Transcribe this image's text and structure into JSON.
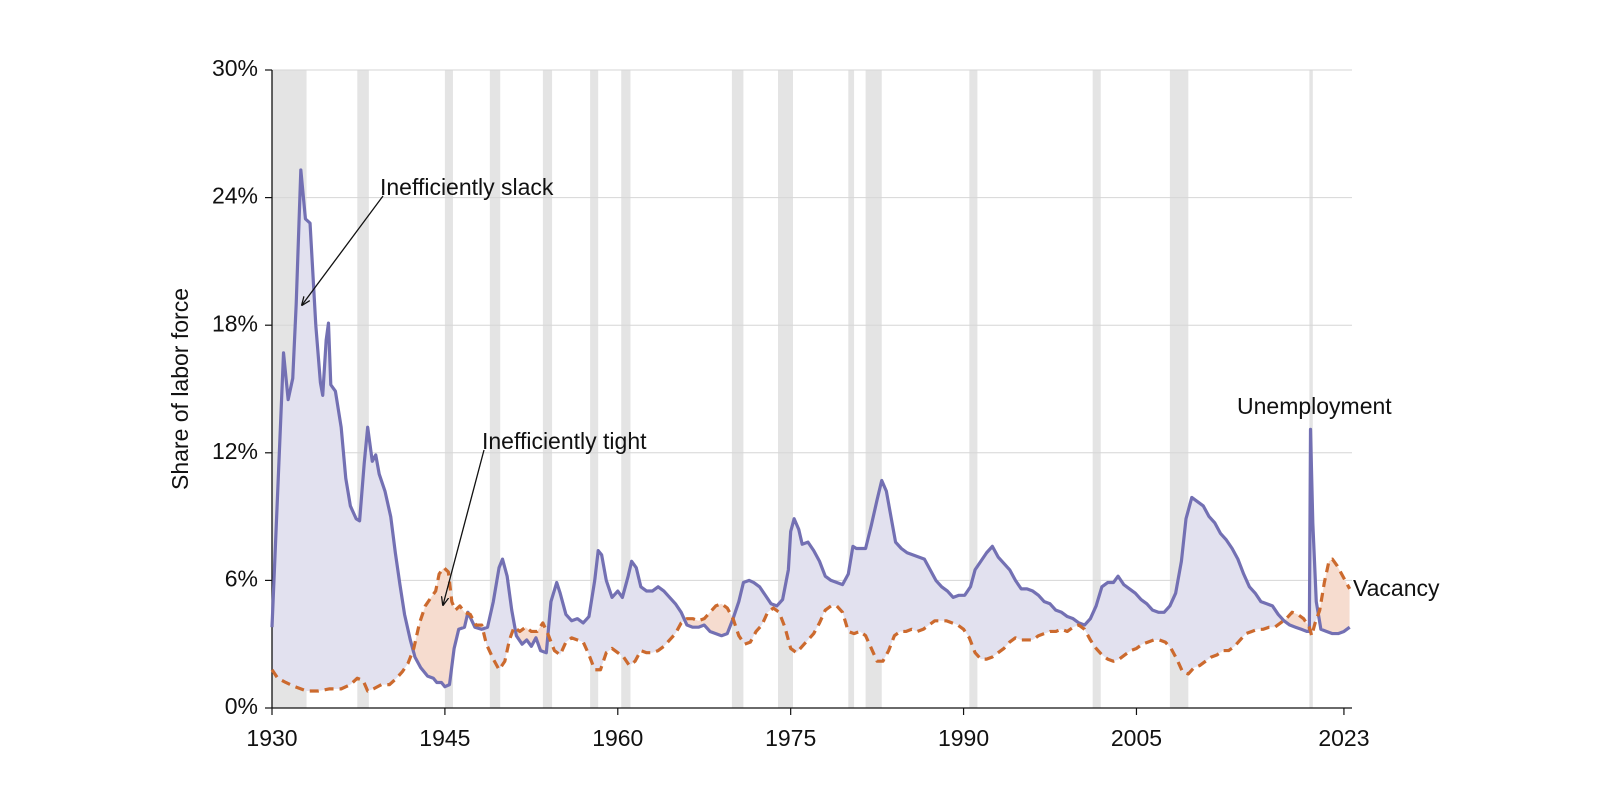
{
  "chart_data": {
    "type": "line",
    "y_label": "Share of labor force",
    "xlim": [
      1930,
      2023.7
    ],
    "xticks": [
      1930,
      1945,
      1960,
      1975,
      1990,
      2005,
      2023
    ],
    "ylim": [
      0,
      30
    ],
    "yticks": [
      {
        "value": 0,
        "label": "0%"
      },
      {
        "value": 6,
        "label": "6%"
      },
      {
        "value": 12,
        "label": "12%"
      },
      {
        "value": 18,
        "label": "18%"
      },
      {
        "value": 24,
        "label": "24%"
      },
      {
        "value": 30,
        "label": "30%"
      }
    ],
    "grid": true,
    "recession_color": "#e4e4e4",
    "recessions": [
      [
        1930,
        1933.0
      ],
      [
        1937.4,
        1938.4
      ],
      [
        1945.0,
        1945.7
      ],
      [
        1948.9,
        1949.8
      ],
      [
        1953.5,
        1954.3
      ],
      [
        1957.6,
        1958.3
      ],
      [
        1960.3,
        1961.1
      ],
      [
        1969.9,
        1970.9
      ],
      [
        1973.9,
        1975.2
      ],
      [
        1980.0,
        1980.5
      ],
      [
        1981.5,
        1982.9
      ],
      [
        1990.5,
        1991.2
      ],
      [
        2001.2,
        2001.9
      ],
      [
        2007.9,
        2009.5
      ],
      [
        2020.0,
        2020.3
      ]
    ],
    "annotations": [
      "Inefficiently slack",
      "Inefficiently tight"
    ],
    "series": [
      {
        "name": "Unemployment",
        "color": "#7370b3",
        "fill": "#e2e1ef",
        "dashed": false,
        "x": [
          1930.0,
          1931.0,
          1931.4,
          1931.8,
          1932.1,
          1932.5,
          1932.9,
          1933.3,
          1933.8,
          1934.2,
          1934.4,
          1934.7,
          1934.9,
          1935.1,
          1935.5,
          1936.0,
          1936.4,
          1936.8,
          1937.3,
          1937.6,
          1938.0,
          1938.3,
          1938.7,
          1939.0,
          1939.3,
          1939.8,
          1940.3,
          1940.7,
          1941.1,
          1941.5,
          1942.0,
          1942.4,
          1942.9,
          1943.5,
          1944.0,
          1944.3,
          1944.7,
          1945.0,
          1945.4,
          1945.8,
          1946.2,
          1946.7,
          1947.0,
          1947.6,
          1948.2,
          1948.7,
          1949.2,
          1949.7,
          1950.0,
          1950.4,
          1950.8,
          1951.2,
          1951.7,
          1952.1,
          1952.5,
          1952.9,
          1953.3,
          1953.8,
          1954.2,
          1954.7,
          1955.0,
          1955.5,
          1956.0,
          1956.5,
          1957.0,
          1957.5,
          1958.0,
          1958.3,
          1958.6,
          1959.0,
          1959.5,
          1960.0,
          1960.4,
          1960.9,
          1961.2,
          1961.6,
          1962.0,
          1962.5,
          1963.0,
          1963.5,
          1964.0,
          1964.5,
          1965.0,
          1965.5,
          1966.0,
          1966.5,
          1967.0,
          1967.5,
          1968.0,
          1968.5,
          1969.0,
          1969.5,
          1970.0,
          1970.5,
          1970.9,
          1971.4,
          1971.8,
          1972.3,
          1972.8,
          1973.3,
          1973.8,
          1974.3,
          1974.8,
          1975.0,
          1975.3,
          1975.7,
          1976.0,
          1976.5,
          1977.0,
          1977.5,
          1978.0,
          1978.5,
          1979.0,
          1979.5,
          1980.0,
          1980.4,
          1980.7,
          1981.0,
          1981.5,
          1982.0,
          1982.5,
          1982.9,
          1983.3,
          1983.7,
          1984.1,
          1984.6,
          1985.1,
          1985.6,
          1986.1,
          1986.6,
          1987.1,
          1987.6,
          1988.1,
          1988.6,
          1989.1,
          1989.6,
          1990.1,
          1990.6,
          1991.0,
          1991.5,
          1992.0,
          1992.5,
          1993.0,
          1993.5,
          1994.0,
          1994.5,
          1995.0,
          1995.5,
          1996.0,
          1996.5,
          1997.0,
          1997.5,
          1998.0,
          1998.5,
          1999.0,
          1999.5,
          2000.0,
          2000.5,
          2001.0,
          2001.5,
          2002.0,
          2002.5,
          2003.0,
          2003.4,
          2003.9,
          2004.4,
          2004.9,
          2005.4,
          2005.9,
          2006.4,
          2006.9,
          2007.4,
          2007.9,
          2008.4,
          2008.9,
          2009.3,
          2009.8,
          2010.3,
          2010.8,
          2011.3,
          2011.8,
          2012.3,
          2012.8,
          2013.3,
          2013.8,
          2014.3,
          2014.8,
          2015.3,
          2015.8,
          2016.3,
          2016.8,
          2017.3,
          2017.8,
          2018.3,
          2018.8,
          2019.3,
          2019.8,
          2020.0,
          2020.1,
          2020.3,
          2020.6,
          2021.0,
          2021.5,
          2022.0,
          2022.5,
          2023.0,
          2023.5
        ],
        "values": [
          3.8,
          16.7,
          14.5,
          15.5,
          19.0,
          25.3,
          23.0,
          22.8,
          18.0,
          15.3,
          14.7,
          17.3,
          18.1,
          15.2,
          14.9,
          13.2,
          10.8,
          9.5,
          8.9,
          8.8,
          11.5,
          13.2,
          11.6,
          11.9,
          11.0,
          10.2,
          9.0,
          7.3,
          5.8,
          4.4,
          3.2,
          2.4,
          1.9,
          1.5,
          1.4,
          1.2,
          1.2,
          1.0,
          1.1,
          2.8,
          3.7,
          3.8,
          4.5,
          3.8,
          3.7,
          3.8,
          5.0,
          6.6,
          7.0,
          6.2,
          4.6,
          3.4,
          3.0,
          3.2,
          2.9,
          3.3,
          2.7,
          2.6,
          5.0,
          5.9,
          5.4,
          4.4,
          4.1,
          4.2,
          4.0,
          4.3,
          6.0,
          7.4,
          7.2,
          6.0,
          5.2,
          5.5,
          5.2,
          6.2,
          6.9,
          6.6,
          5.7,
          5.5,
          5.5,
          5.7,
          5.5,
          5.2,
          4.9,
          4.5,
          3.9,
          3.8,
          3.8,
          3.9,
          3.6,
          3.5,
          3.4,
          3.5,
          4.2,
          5.0,
          5.9,
          6.0,
          5.9,
          5.7,
          5.3,
          4.9,
          4.8,
          5.1,
          6.5,
          8.3,
          8.9,
          8.4,
          7.7,
          7.8,
          7.4,
          6.9,
          6.2,
          6.0,
          5.9,
          5.8,
          6.3,
          7.6,
          7.5,
          7.5,
          7.5,
          8.6,
          9.8,
          10.7,
          10.2,
          9.0,
          7.8,
          7.5,
          7.3,
          7.2,
          7.1,
          7.0,
          6.5,
          6.0,
          5.7,
          5.5,
          5.2,
          5.3,
          5.3,
          5.7,
          6.5,
          6.9,
          7.3,
          7.6,
          7.1,
          6.8,
          6.5,
          6.0,
          5.6,
          5.6,
          5.5,
          5.3,
          5.0,
          4.9,
          4.6,
          4.5,
          4.3,
          4.2,
          4.0,
          3.9,
          4.2,
          4.8,
          5.7,
          5.9,
          5.9,
          6.2,
          5.8,
          5.6,
          5.4,
          5.1,
          4.9,
          4.6,
          4.5,
          4.5,
          4.8,
          5.4,
          6.9,
          8.9,
          9.9,
          9.7,
          9.5,
          9.0,
          8.7,
          8.2,
          7.9,
          7.5,
          7.0,
          6.3,
          5.7,
          5.4,
          5.0,
          4.9,
          4.8,
          4.4,
          4.1,
          3.9,
          3.8,
          3.7,
          3.6,
          3.6,
          13.1,
          8.7,
          5.0,
          3.7,
          3.6,
          3.5,
          3.5,
          3.6,
          3.8
        ]
      },
      {
        "name": "Vacancy",
        "color": "#cc6a2e",
        "fill": "#f6dccf",
        "dashed": true,
        "x": [
          1930.0,
          1930.5,
          1931.2,
          1932.0,
          1933.0,
          1934.0,
          1935.0,
          1936.0,
          1936.8,
          1937.4,
          1937.9,
          1938.3,
          1938.8,
          1939.5,
          1940.2,
          1940.8,
          1941.3,
          1941.8,
          1942.3,
          1942.8,
          1943.3,
          1943.8,
          1944.2,
          1944.5,
          1944.9,
          1945.3,
          1945.6,
          1945.9,
          1946.3,
          1946.7,
          1947.2,
          1947.7,
          1948.2,
          1948.6,
          1949.2,
          1949.7,
          1950.2,
          1950.6,
          1951.0,
          1951.5,
          1952.0,
          1952.5,
          1953.0,
          1953.5,
          1954.0,
          1954.5,
          1955.0,
          1955.5,
          1956.0,
          1956.5,
          1957.0,
          1957.5,
          1958.0,
          1958.5,
          1959.0,
          1959.5,
          1960.0,
          1960.5,
          1961.0,
          1961.5,
          1962.0,
          1962.5,
          1963.0,
          1963.5,
          1964.0,
          1964.5,
          1965.0,
          1965.5,
          1966.0,
          1966.5,
          1967.0,
          1967.5,
          1968.0,
          1968.5,
          1969.0,
          1969.5,
          1970.0,
          1970.5,
          1971.0,
          1971.5,
          1972.0,
          1972.5,
          1973.0,
          1973.5,
          1974.0,
          1974.5,
          1975.0,
          1975.5,
          1976.0,
          1976.5,
          1977.0,
          1977.5,
          1978.0,
          1978.5,
          1979.0,
          1979.5,
          1980.0,
          1980.5,
          1981.0,
          1981.5,
          1982.0,
          1982.5,
          1983.0,
          1983.5,
          1984.0,
          1984.5,
          1985.0,
          1985.5,
          1986.0,
          1986.5,
          1987.0,
          1987.5,
          1988.0,
          1988.5,
          1989.0,
          1989.5,
          1990.0,
          1990.5,
          1991.0,
          1991.5,
          1992.0,
          1992.5,
          1993.0,
          1993.5,
          1994.0,
          1994.5,
          1995.0,
          1995.5,
          1996.0,
          1996.5,
          1997.0,
          1997.5,
          1998.0,
          1998.5,
          1999.0,
          1999.5,
          2000.0,
          2000.5,
          2001.0,
          2001.5,
          2002.0,
          2002.5,
          2003.0,
          2003.5,
          2004.0,
          2004.5,
          2005.0,
          2005.5,
          2006.0,
          2006.5,
          2007.0,
          2007.5,
          2008.0,
          2008.5,
          2009.0,
          2009.5,
          2010.0,
          2010.5,
          2011.0,
          2011.5,
          2012.0,
          2012.5,
          2013.0,
          2013.5,
          2014.0,
          2014.5,
          2015.0,
          2015.5,
          2016.0,
          2016.5,
          2017.0,
          2017.5,
          2018.0,
          2018.5,
          2019.0,
          2019.5,
          2020.0,
          2020.2,
          2020.5,
          2020.9,
          2021.3,
          2021.7,
          2022.0,
          2022.4,
          2022.8,
          2023.2,
          2023.5
        ],
        "values": [
          1.8,
          1.4,
          1.2,
          1.0,
          0.8,
          0.8,
          0.9,
          0.9,
          1.1,
          1.4,
          1.3,
          0.8,
          0.9,
          1.1,
          1.1,
          1.4,
          1.7,
          2.1,
          2.8,
          4.0,
          4.8,
          5.2,
          5.5,
          6.3,
          6.6,
          6.4,
          5.0,
          4.6,
          4.8,
          4.5,
          4.4,
          3.9,
          3.9,
          3.0,
          2.3,
          1.8,
          2.2,
          3.2,
          3.8,
          3.6,
          3.8,
          3.6,
          3.6,
          4.0,
          3.4,
          2.7,
          2.5,
          3.1,
          3.3,
          3.2,
          3.1,
          2.5,
          1.8,
          1.8,
          2.6,
          2.8,
          2.6,
          2.4,
          2.0,
          2.2,
          2.7,
          2.6,
          2.6,
          2.7,
          2.9,
          3.2,
          3.5,
          4.0,
          4.2,
          4.2,
          4.1,
          4.2,
          4.5,
          4.8,
          4.9,
          4.7,
          4.2,
          3.4,
          3.0,
          3.1,
          3.6,
          3.9,
          4.5,
          4.7,
          4.5,
          3.8,
          2.8,
          2.6,
          2.9,
          3.2,
          3.5,
          4.0,
          4.6,
          4.8,
          4.8,
          4.5,
          3.6,
          3.5,
          3.6,
          3.4,
          2.8,
          2.2,
          2.2,
          2.7,
          3.4,
          3.6,
          3.6,
          3.7,
          3.6,
          3.7,
          3.9,
          4.1,
          4.1,
          4.1,
          4.0,
          3.9,
          3.7,
          3.3,
          2.6,
          2.3,
          2.3,
          2.4,
          2.6,
          2.8,
          3.1,
          3.3,
          3.2,
          3.2,
          3.2,
          3.4,
          3.5,
          3.6,
          3.6,
          3.7,
          3.6,
          3.8,
          3.9,
          3.7,
          3.2,
          2.8,
          2.5,
          2.3,
          2.2,
          2.3,
          2.5,
          2.7,
          2.8,
          3.0,
          3.1,
          3.2,
          3.2,
          3.1,
          2.8,
          2.3,
          1.7,
          1.6,
          1.9,
          2.0,
          2.2,
          2.4,
          2.5,
          2.7,
          2.7,
          2.9,
          3.2,
          3.5,
          3.6,
          3.7,
          3.7,
          3.8,
          3.8,
          4.0,
          4.2,
          4.5,
          4.4,
          4.2,
          3.8,
          3.4,
          4.0,
          4.6,
          5.9,
          6.9,
          7.0,
          6.7,
          6.3,
          5.9,
          5.6
        ]
      }
    ]
  }
}
